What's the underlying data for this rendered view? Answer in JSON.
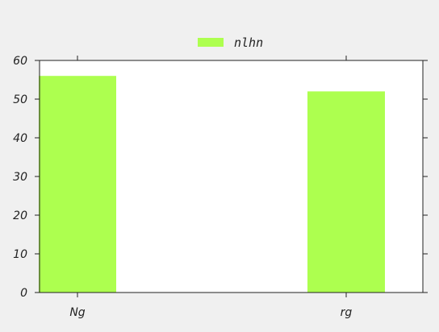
{
  "chart_data": {
    "type": "bar",
    "categories": [
      "Ng",
      "rg"
    ],
    "series": [
      {
        "name": "nlhn",
        "values": [
          56,
          52
        ],
        "color": "#adff4f"
      }
    ],
    "ylim": [
      0,
      60
    ],
    "yticks": [
      0,
      10,
      20,
      30,
      40,
      50,
      60
    ],
    "grid": false,
    "legend_position": "top-center",
    "background": "#f0f0f0",
    "plot_background": "#ffffff"
  }
}
